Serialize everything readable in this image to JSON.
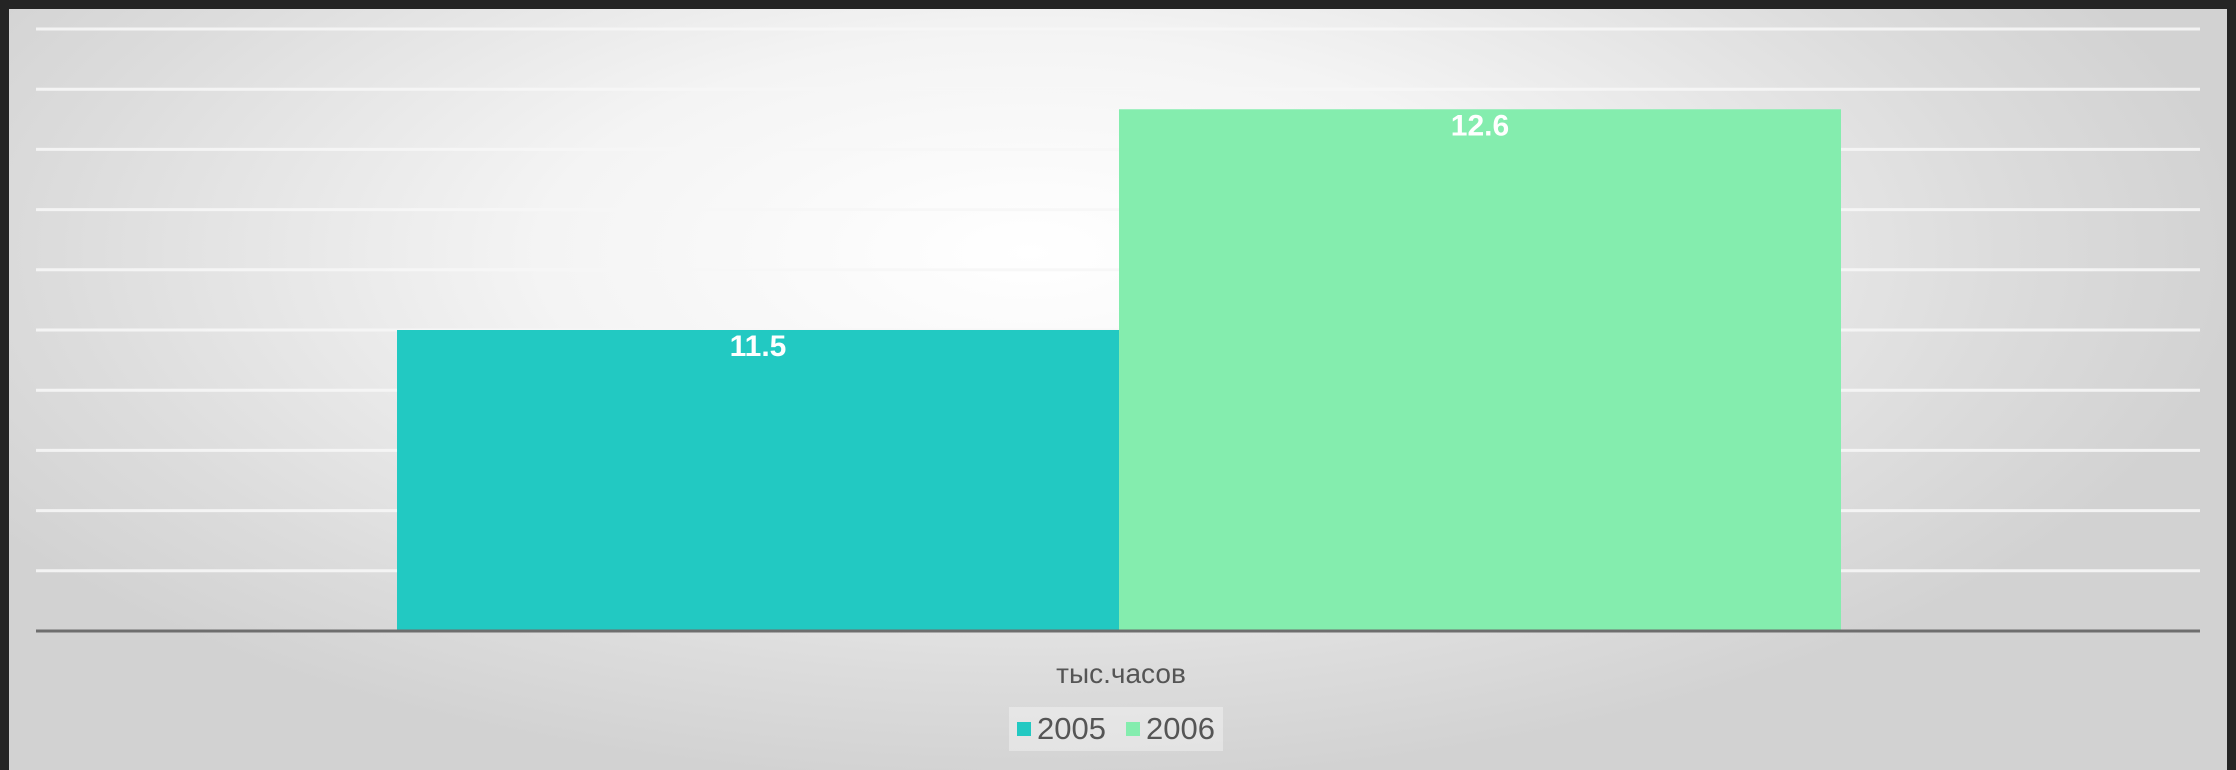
{
  "chart_data": {
    "type": "bar",
    "categories": [
      "тыс.часов"
    ],
    "series": [
      {
        "name": "2005",
        "values": [
          11.5
        ],
        "color": "#22c9c2"
      },
      {
        "name": "2006",
        "values": [
          12.6
        ],
        "color": "#84edae"
      }
    ],
    "ylim": [
      10,
      13
    ],
    "grid": true,
    "legend": "bottom",
    "data_labels": [
      "11.5",
      "12.6"
    ]
  },
  "colors": {
    "background_frame": "#242424",
    "axis": "#6e6e6e",
    "gridline": "#f7f7f7"
  }
}
